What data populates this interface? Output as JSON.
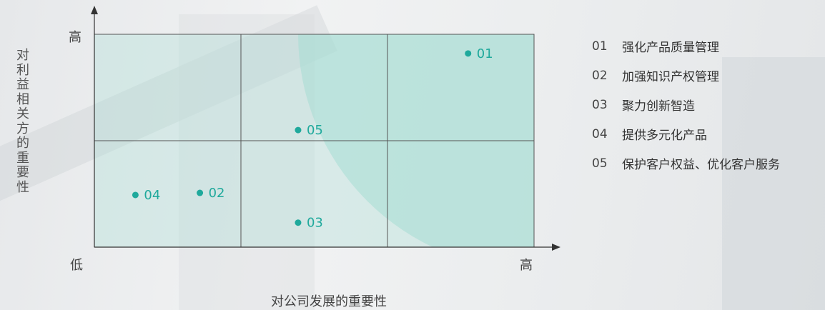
{
  "chart_data": {
    "type": "scatter",
    "xlabel": "对公司发展的重要性",
    "ylabel": "对利益相关方的重要性",
    "xlim": [
      0,
      3
    ],
    "ylim": [
      0,
      2
    ],
    "tick_labels": {
      "y_high": "高",
      "x_low": "低",
      "x_high": "高"
    },
    "grid": "3x2",
    "points": [
      {
        "label": "01",
        "x": 2.55,
        "y": 1.82
      },
      {
        "label": "02",
        "x": 0.72,
        "y": 0.51
      },
      {
        "label": "03",
        "x": 1.39,
        "y": 0.23
      },
      {
        "label": "04",
        "x": 0.28,
        "y": 0.49
      },
      {
        "label": "05",
        "x": 1.39,
        "y": 1.1
      }
    ],
    "legend": [
      {
        "num": "01",
        "text": "强化产品质量管理"
      },
      {
        "num": "02",
        "text": "加强知识产权管理"
      },
      {
        "num": "03",
        "text": "聚力创新智造"
      },
      {
        "num": "04",
        "text": "提供多元化产品"
      },
      {
        "num": "05",
        "text": "保护客户权益、优化客户服务"
      }
    ],
    "colors": {
      "point": "#1fa99c",
      "label": "#1fa99c",
      "fill": "#a6dcd4",
      "grid": "#555555"
    }
  }
}
